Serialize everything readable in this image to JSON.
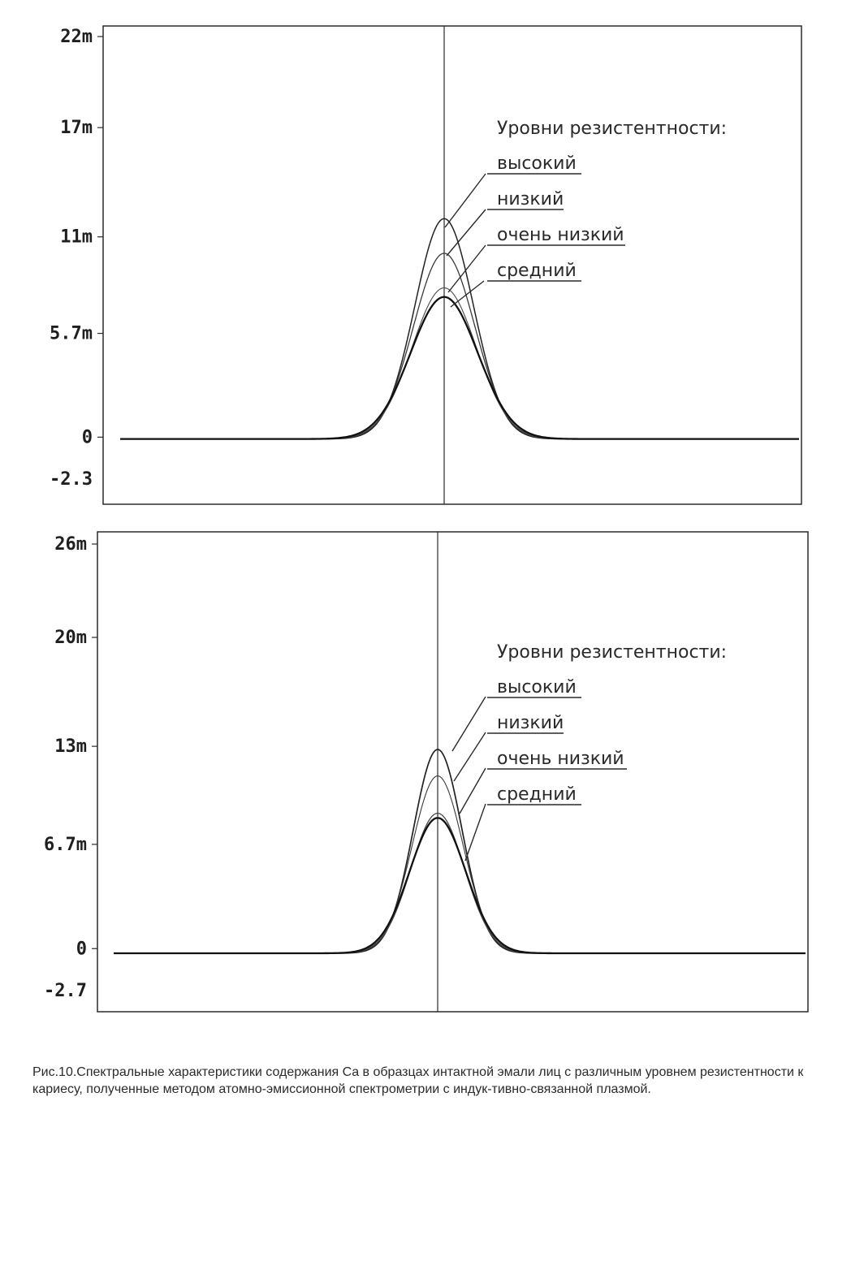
{
  "chart_data": [
    {
      "type": "line",
      "ylim": [
        -2.3,
        22
      ],
      "yticks": [
        {
          "value": 22,
          "label": "22m"
        },
        {
          "value": 17,
          "label": "17m"
        },
        {
          "value": 11,
          "label": "11m"
        },
        {
          "value": 5.7,
          "label": "5.7m"
        },
        {
          "value": 0,
          "label": "0"
        },
        {
          "value": -2.3,
          "label": "-2.3"
        }
      ],
      "legend_title": "Уровни резистентности:",
      "series": [
        {
          "name": "высокий",
          "peak": 12.0,
          "baseline": -0.1
        },
        {
          "name": "низкий",
          "peak": 10.1,
          "baseline": -0.1
        },
        {
          "name": "очень низкий",
          "peak": 8.2,
          "baseline": -0.1
        },
        {
          "name": "средний",
          "peak": 7.7,
          "baseline": -0.1
        }
      ]
    },
    {
      "type": "line",
      "ylim": [
        -2.7,
        26
      ],
      "yticks": [
        {
          "value": 26,
          "label": "26m"
        },
        {
          "value": 20,
          "label": "20m"
        },
        {
          "value": 13,
          "label": "13m"
        },
        {
          "value": 6.7,
          "label": "6.7m"
        },
        {
          "value": 0,
          "label": "0"
        },
        {
          "value": -2.7,
          "label": "-2.7"
        }
      ],
      "legend_title": "Уровни резистентности:",
      "series": [
        {
          "name": "высокий",
          "peak": 12.8,
          "baseline": -0.3
        },
        {
          "name": "низкий",
          "peak": 11.1,
          "baseline": -0.3
        },
        {
          "name": "очень низкий",
          "peak": 8.7,
          "baseline": -0.3
        },
        {
          "name": "средний",
          "peak": 8.4,
          "baseline": -0.3
        }
      ]
    }
  ],
  "caption": "Рис.10.Спектральные характеристики содержания Ca в образцах интактной эмали лиц с различным уровнем резистентности к кариесу, полученные методом атомно-эмиссионной спектрометрии с индук-тивно-связанной плазмой."
}
